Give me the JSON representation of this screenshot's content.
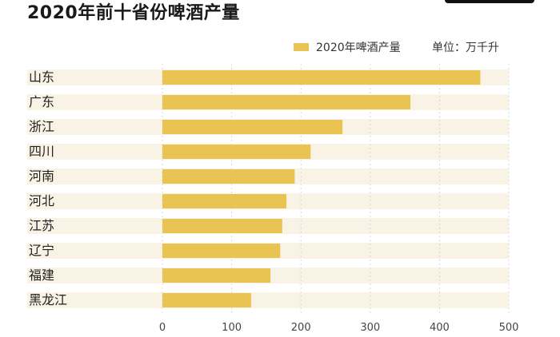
{
  "title": "2020年前十省份啤酒产量",
  "unit": "单位：万千升",
  "colors": {
    "bar": "#eac453",
    "band": "#f9f3e6",
    "grid": "#d8d8d8"
  },
  "chart_data": {
    "type": "bar",
    "orientation": "horizontal",
    "title": "2020年前十省份啤酒产量",
    "categories": [
      "山东",
      "广东",
      "浙江",
      "四川",
      "河南",
      "河北",
      "江苏",
      "辽宁",
      "福建",
      "黑龙江"
    ],
    "series": [
      {
        "name": "2020年啤酒产量",
        "values": [
          459,
          358,
          260,
          214,
          191,
          179,
          173,
          170,
          156,
          128
        ]
      }
    ],
    "xlim": [
      0,
      500
    ],
    "xticks": [
      0,
      100,
      200,
      300,
      400,
      500
    ],
    "grid": true,
    "legend": "top-right"
  }
}
